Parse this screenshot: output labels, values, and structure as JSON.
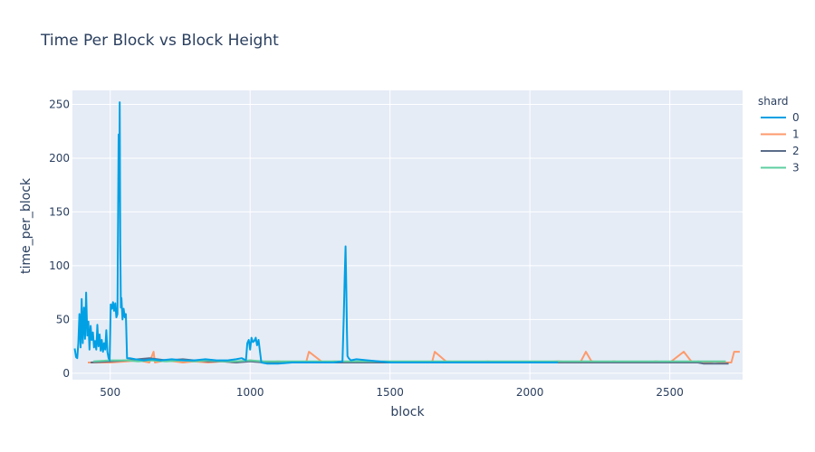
{
  "chart_data": {
    "type": "line",
    "title": "Time Per Block vs Block Height",
    "xlabel": "block",
    "ylabel": "time_per_block",
    "xlim": [
      365,
      2760
    ],
    "ylim": [
      -6,
      263
    ],
    "x_ticks": [
      500,
      1000,
      1500,
      2000,
      2500
    ],
    "y_ticks": [
      0,
      50,
      100,
      150,
      200,
      250
    ],
    "grid": true,
    "legend_title": "shard",
    "legend_position": "top-right",
    "series": [
      {
        "name": "0",
        "color": "#00a0e4",
        "x": [
          373,
          378,
          382,
          386,
          390,
          394,
          398,
          402,
          406,
          410,
          414,
          418,
          422,
          426,
          430,
          434,
          438,
          442,
          446,
          450,
          454,
          458,
          462,
          466,
          470,
          474,
          478,
          482,
          486,
          490,
          494,
          498,
          502,
          506,
          510,
          514,
          518,
          522,
          526,
          530,
          532,
          534,
          536,
          538,
          540,
          544,
          548,
          552,
          556,
          560,
          570,
          590,
          620,
          650,
          680,
          720,
          760,
          800,
          840,
          880,
          920,
          950,
          970,
          985,
          990,
          995,
          1000,
          1005,
          1010,
          1015,
          1020,
          1025,
          1030,
          1040,
          1060,
          1100,
          1150,
          1200,
          1250,
          1300,
          1330,
          1335,
          1338,
          1341,
          1344,
          1346,
          1348,
          1352,
          1360,
          1380,
          1420,
          1460,
          1500,
          1600,
          1700,
          1800,
          1900,
          2000,
          2100
        ],
        "values": [
          23,
          15,
          14,
          28,
          55,
          24,
          69,
          28,
          61,
          32,
          75,
          35,
          48,
          22,
          44,
          31,
          38,
          24,
          30,
          22,
          45,
          25,
          36,
          21,
          31,
          20,
          28,
          22,
          40,
          20,
          14,
          12,
          64,
          60,
          66,
          58,
          65,
          52,
          55,
          222,
          160,
          252,
          120,
          61,
          70,
          50,
          60,
          52,
          55,
          14,
          14,
          13,
          12,
          13,
          12,
          13,
          12,
          12,
          13,
          12,
          12,
          13,
          14,
          12,
          28,
          31,
          22,
          33,
          29,
          30,
          33,
          26,
          31,
          10,
          9,
          9,
          10,
          10,
          10,
          10,
          11,
          55,
          88,
          118,
          75,
          40,
          16,
          14,
          12,
          13,
          12,
          11,
          10,
          10,
          10,
          10,
          10,
          10,
          10
        ]
      },
      {
        "name": "1",
        "color": "#fe9a6c",
        "x": [
          420,
          500,
          560,
          600,
          640,
          655,
          660,
          700,
          760,
          800,
          850,
          900,
          950,
          1000,
          1050,
          1100,
          1150,
          1200,
          1210,
          1260,
          1300,
          1350,
          1400,
          1450,
          1500,
          1650,
          1660,
          1700,
          1800,
          1850,
          1900,
          2000,
          2100,
          2180,
          2200,
          2220,
          2260,
          2300,
          2350,
          2400,
          2450,
          2500,
          2550,
          2580,
          2600,
          2640,
          2660,
          2680,
          2700,
          2720,
          2730,
          2750
        ],
        "values": [
          10,
          10,
          11,
          12,
          10,
          20,
          10,
          12,
          10,
          11,
          10,
          11,
          10,
          12,
          10,
          11,
          10,
          10,
          20,
          10,
          11,
          10,
          11,
          10,
          10,
          10,
          20,
          11,
          10,
          11,
          10,
          10,
          11,
          10,
          20,
          11,
          10,
          11,
          10,
          10,
          11,
          10,
          20,
          10,
          11,
          10,
          11,
          10,
          10,
          10,
          20,
          20
        ]
      },
      {
        "name": "2",
        "color": "#5b6c8a",
        "x": [
          430,
          500,
          560,
          600,
          640,
          700,
          760,
          800,
          850,
          900,
          950,
          1000,
          1050,
          1100,
          1200,
          1300,
          1400,
          1500,
          1700,
          1900,
          2100,
          2300,
          2500,
          2600,
          2620,
          2650,
          2680,
          2710
        ],
        "values": [
          10,
          11,
          12,
          13,
          14,
          12,
          13,
          12,
          11,
          11,
          10,
          11,
          10,
          10,
          10,
          10,
          10,
          10,
          10,
          10,
          10,
          10,
          10,
          10,
          9,
          9,
          9,
          9
        ]
      },
      {
        "name": "3",
        "color": "#5ecfa0",
        "x": [
          440,
          500,
          560,
          600,
          640,
          700,
          760,
          800,
          850,
          900,
          950,
          1000,
          1050,
          1100,
          1200,
          1300,
          1400,
          1500,
          1600,
          1700,
          1800,
          1900,
          2000,
          2100,
          2200,
          2300,
          2400,
          2500,
          2600,
          2700
        ],
        "values": [
          11,
          12,
          12,
          11,
          12,
          11,
          12,
          11,
          12,
          11,
          11,
          12,
          11,
          11,
          11,
          11,
          11,
          11,
          11,
          11,
          11,
          11,
          11,
          11,
          11,
          11,
          11,
          11,
          11,
          11
        ]
      }
    ]
  }
}
